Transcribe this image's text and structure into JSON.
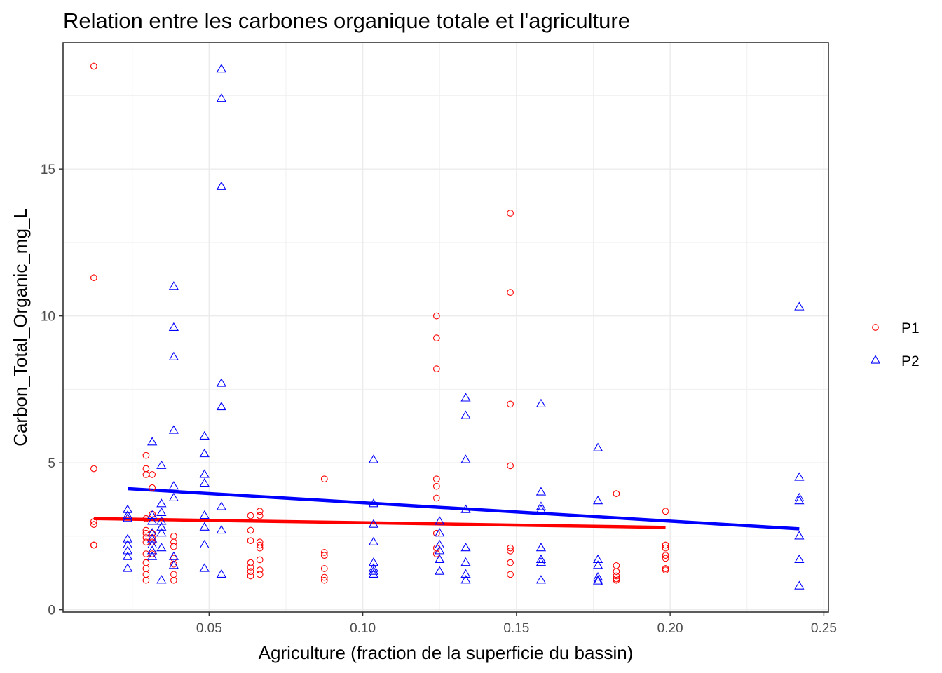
{
  "chart_data": {
    "type": "scatter",
    "title": "Relation entre les carbones organique totale et l'agriculture",
    "xlabel": "Agriculture (fraction de la superficie du bassin)",
    "ylabel": "Carbon_Total_Organic_mg_L",
    "xlim": [
      0.0025,
      0.2515
    ],
    "ylim": [
      -0.08,
      19.3
    ],
    "x_ticks": [
      0.05,
      0.1,
      0.15,
      0.2,
      0.25
    ],
    "x_tick_labels": [
      "0.05",
      "0.10",
      "0.15",
      "0.20",
      "0.25"
    ],
    "y_ticks": [
      0,
      5,
      10,
      15
    ],
    "y_tick_labels": [
      "0",
      "5",
      "10",
      "15"
    ],
    "grid": true,
    "legend_position": "right",
    "series": [
      {
        "name": "P1",
        "color": "#ff0000",
        "marker": "open-circle",
        "points": [
          [
            0.0125,
            18.5
          ],
          [
            0.0125,
            11.3
          ],
          [
            0.0125,
            4.8
          ],
          [
            0.0125,
            3.0
          ],
          [
            0.0125,
            2.9
          ],
          [
            0.0125,
            2.2
          ],
          [
            0.0125,
            2.2
          ],
          [
            0.0295,
            5.25
          ],
          [
            0.0295,
            4.8
          ],
          [
            0.0295,
            4.6
          ],
          [
            0.0295,
            3.1
          ],
          [
            0.0295,
            2.7
          ],
          [
            0.0295,
            2.6
          ],
          [
            0.0295,
            2.45
          ],
          [
            0.0295,
            2.3
          ],
          [
            0.0295,
            1.9
          ],
          [
            0.0295,
            1.6
          ],
          [
            0.0295,
            1.4
          ],
          [
            0.0295,
            1.2
          ],
          [
            0.0295,
            1.0
          ],
          [
            0.0315,
            4.6
          ],
          [
            0.0315,
            4.15
          ],
          [
            0.0315,
            3.25
          ],
          [
            0.0315,
            2.6
          ],
          [
            0.0315,
            2.45
          ],
          [
            0.0315,
            2.3
          ],
          [
            0.0315,
            1.9
          ],
          [
            0.0385,
            2.5
          ],
          [
            0.0385,
            2.3
          ],
          [
            0.0385,
            2.15
          ],
          [
            0.0385,
            1.75
          ],
          [
            0.0385,
            1.55
          ],
          [
            0.0385,
            1.2
          ],
          [
            0.0385,
            1.0
          ],
          [
            0.0635,
            3.2
          ],
          [
            0.0635,
            2.7
          ],
          [
            0.0635,
            2.35
          ],
          [
            0.0635,
            1.6
          ],
          [
            0.0635,
            1.45
          ],
          [
            0.0635,
            1.3
          ],
          [
            0.0635,
            1.15
          ],
          [
            0.0665,
            3.35
          ],
          [
            0.0665,
            3.2
          ],
          [
            0.0665,
            2.3
          ],
          [
            0.0665,
            2.2
          ],
          [
            0.0665,
            2.1
          ],
          [
            0.0665,
            1.7
          ],
          [
            0.0665,
            1.35
          ],
          [
            0.0665,
            1.2
          ],
          [
            0.0875,
            4.45
          ],
          [
            0.0875,
            1.95
          ],
          [
            0.0875,
            1.85
          ],
          [
            0.0875,
            1.4
          ],
          [
            0.0875,
            1.1
          ],
          [
            0.0875,
            1.0
          ],
          [
            0.124,
            10.0
          ],
          [
            0.124,
            9.25
          ],
          [
            0.124,
            8.2
          ],
          [
            0.124,
            4.45
          ],
          [
            0.124,
            4.2
          ],
          [
            0.124,
            3.8
          ],
          [
            0.124,
            2.6
          ],
          [
            0.124,
            2.1
          ],
          [
            0.124,
            1.9
          ],
          [
            0.148,
            13.5
          ],
          [
            0.148,
            10.8
          ],
          [
            0.148,
            7.0
          ],
          [
            0.148,
            4.9
          ],
          [
            0.148,
            2.1
          ],
          [
            0.148,
            2.0
          ],
          [
            0.148,
            1.6
          ],
          [
            0.148,
            1.2
          ],
          [
            0.1825,
            3.95
          ],
          [
            0.1825,
            1.5
          ],
          [
            0.1825,
            1.3
          ],
          [
            0.1825,
            1.15
          ],
          [
            0.1825,
            1.05
          ],
          [
            0.1825,
            1.0
          ],
          [
            0.1985,
            3.35
          ],
          [
            0.1985,
            2.2
          ],
          [
            0.1985,
            2.1
          ],
          [
            0.1985,
            1.85
          ],
          [
            0.1985,
            1.75
          ],
          [
            0.1985,
            1.4
          ],
          [
            0.1985,
            1.35
          ]
        ]
      },
      {
        "name": "P2",
        "color": "#0000ff",
        "marker": "open-triangle",
        "points": [
          [
            0.0235,
            3.4
          ],
          [
            0.0235,
            3.2
          ],
          [
            0.0235,
            3.1
          ],
          [
            0.0235,
            2.4
          ],
          [
            0.0235,
            2.2
          ],
          [
            0.0235,
            2.0
          ],
          [
            0.0235,
            1.8
          ],
          [
            0.0235,
            1.4
          ],
          [
            0.0315,
            5.7
          ],
          [
            0.0315,
            3.2
          ],
          [
            0.0315,
            3.0
          ],
          [
            0.0315,
            2.6
          ],
          [
            0.0315,
            2.4
          ],
          [
            0.0315,
            2.2
          ],
          [
            0.0315,
            2.0
          ],
          [
            0.0315,
            1.8
          ],
          [
            0.0345,
            4.9
          ],
          [
            0.0345,
            3.6
          ],
          [
            0.0345,
            3.3
          ],
          [
            0.0345,
            3.0
          ],
          [
            0.0345,
            2.8
          ],
          [
            0.0345,
            2.6
          ],
          [
            0.0345,
            2.1
          ],
          [
            0.0345,
            1.0
          ],
          [
            0.0385,
            11.0
          ],
          [
            0.0385,
            9.6
          ],
          [
            0.0385,
            8.6
          ],
          [
            0.0385,
            6.1
          ],
          [
            0.0385,
            4.2
          ],
          [
            0.0385,
            3.8
          ],
          [
            0.0385,
            1.8
          ],
          [
            0.0385,
            1.5
          ],
          [
            0.0485,
            5.9
          ],
          [
            0.0485,
            5.3
          ],
          [
            0.0485,
            4.6
          ],
          [
            0.0485,
            4.3
          ],
          [
            0.0485,
            3.2
          ],
          [
            0.0485,
            2.8
          ],
          [
            0.0485,
            2.2
          ],
          [
            0.0485,
            1.4
          ],
          [
            0.054,
            18.4
          ],
          [
            0.054,
            17.4
          ],
          [
            0.054,
            14.4
          ],
          [
            0.054,
            7.7
          ],
          [
            0.054,
            6.9
          ],
          [
            0.054,
            3.5
          ],
          [
            0.054,
            2.7
          ],
          [
            0.054,
            1.2
          ],
          [
            0.1035,
            5.1
          ],
          [
            0.1035,
            3.6
          ],
          [
            0.1035,
            2.9
          ],
          [
            0.1035,
            2.3
          ],
          [
            0.1035,
            1.6
          ],
          [
            0.1035,
            1.4
          ],
          [
            0.1035,
            1.3
          ],
          [
            0.1035,
            1.2
          ],
          [
            0.125,
            3.0
          ],
          [
            0.125,
            2.6
          ],
          [
            0.125,
            2.2
          ],
          [
            0.125,
            2.0
          ],
          [
            0.125,
            1.7
          ],
          [
            0.125,
            1.3
          ],
          [
            0.1335,
            7.2
          ],
          [
            0.1335,
            6.6
          ],
          [
            0.1335,
            5.1
          ],
          [
            0.1335,
            3.4
          ],
          [
            0.1335,
            2.1
          ],
          [
            0.1335,
            1.6
          ],
          [
            0.1335,
            1.2
          ],
          [
            0.1335,
            1.0
          ],
          [
            0.158,
            7.0
          ],
          [
            0.158,
            4.0
          ],
          [
            0.158,
            3.5
          ],
          [
            0.158,
            3.4
          ],
          [
            0.158,
            2.1
          ],
          [
            0.158,
            1.7
          ],
          [
            0.158,
            1.6
          ],
          [
            0.158,
            1.0
          ],
          [
            0.1765,
            5.5
          ],
          [
            0.1765,
            3.7
          ],
          [
            0.1765,
            1.7
          ],
          [
            0.1765,
            1.5
          ],
          [
            0.1765,
            1.1
          ],
          [
            0.1765,
            1.0
          ],
          [
            0.1765,
            0.95
          ],
          [
            0.242,
            10.3
          ],
          [
            0.242,
            4.5
          ],
          [
            0.242,
            3.8
          ],
          [
            0.242,
            3.7
          ],
          [
            0.242,
            2.5
          ],
          [
            0.242,
            1.7
          ],
          [
            0.242,
            0.8
          ]
        ]
      }
    ],
    "fit_lines": [
      {
        "name": "P1",
        "color": "#ff0000",
        "x": [
          0.0125,
          0.1985
        ],
        "y": [
          3.1,
          2.8
        ]
      },
      {
        "name": "P2",
        "color": "#0000ff",
        "x": [
          0.0235,
          0.242
        ],
        "y": [
          4.12,
          2.75
        ]
      }
    ]
  }
}
